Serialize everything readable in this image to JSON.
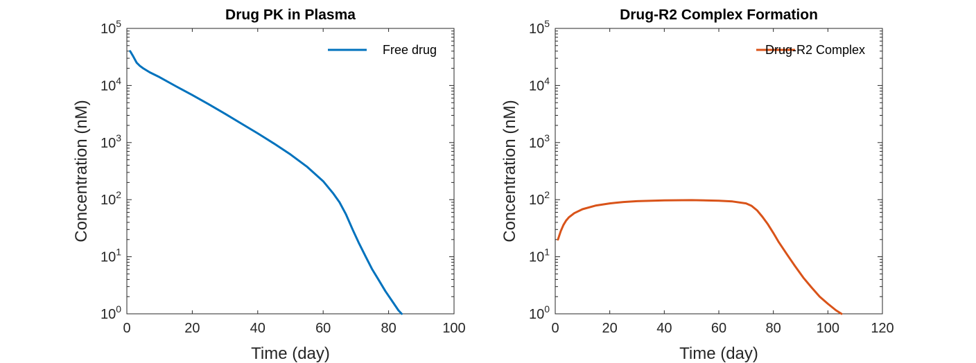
{
  "chart_data": [
    {
      "type": "line",
      "title": "Drug PK in Plasma",
      "xlabel": "Time (day)",
      "ylabel": "Concentration (nM)",
      "xlim": [
        0,
        100
      ],
      "ylim": [
        1,
        100000
      ],
      "yscale": "log",
      "xticks": [
        0,
        20,
        40,
        60,
        80,
        100
      ],
      "yticks": [
        {
          "base": "10",
          "exp": "0",
          "value": 1
        },
        {
          "base": "10",
          "exp": "1",
          "value": 10
        },
        {
          "base": "10",
          "exp": "2",
          "value": 100
        },
        {
          "base": "10",
          "exp": "3",
          "value": 1000
        },
        {
          "base": "10",
          "exp": "4",
          "value": 10000
        },
        {
          "base": "10",
          "exp": "5",
          "value": 100000
        }
      ],
      "legend_position": "top-right",
      "grid": false,
      "series": [
        {
          "name": "Free drug",
          "color": "#0072BD",
          "x": [
            1,
            2,
            3,
            4,
            5,
            7,
            10,
            15,
            20,
            25,
            30,
            35,
            40,
            45,
            50,
            55,
            60,
            63,
            65,
            67,
            69,
            71,
            73,
            75,
            77,
            79,
            81,
            83,
            84
          ],
          "y": [
            40000,
            32000,
            25000,
            22000,
            20000,
            17000,
            14000,
            9700,
            6800,
            4700,
            3200,
            2150,
            1450,
            960,
            620,
            380,
            210,
            130,
            90,
            55,
            30,
            17,
            10,
            6,
            3.9,
            2.5,
            1.7,
            1.15,
            1.0
          ]
        }
      ]
    },
    {
      "type": "line",
      "title": "Drug-R2 Complex Formation",
      "xlabel": "Time (day)",
      "ylabel": "Concentration (nM)",
      "xlim": [
        0,
        120
      ],
      "ylim": [
        1,
        100000
      ],
      "yscale": "log",
      "xticks": [
        0,
        20,
        40,
        60,
        80,
        100,
        120
      ],
      "yticks": [
        {
          "base": "10",
          "exp": "0",
          "value": 1
        },
        {
          "base": "10",
          "exp": "1",
          "value": 10
        },
        {
          "base": "10",
          "exp": "2",
          "value": 100
        },
        {
          "base": "10",
          "exp": "3",
          "value": 1000
        },
        {
          "base": "10",
          "exp": "4",
          "value": 10000
        },
        {
          "base": "10",
          "exp": "5",
          "value": 100000
        }
      ],
      "legend_position": "top-right",
      "grid": false,
      "series": [
        {
          "name": "Drug-R2 Complex",
          "color": "#D95319",
          "x": [
            1,
            2,
            3,
            4,
            5,
            7,
            10,
            15,
            20,
            25,
            30,
            40,
            50,
            60,
            65,
            70,
            72,
            74,
            76,
            78,
            80,
            82,
            85,
            88,
            91,
            94,
            97,
            100,
            103,
            105
          ],
          "y": [
            20,
            28,
            36,
            43,
            49,
            58,
            68,
            79,
            86,
            91,
            94,
            97,
            98,
            96,
            93,
            86,
            78,
            65,
            50,
            37,
            26,
            18,
            11,
            6.8,
            4.3,
            2.9,
            2.0,
            1.5,
            1.15,
            1.0
          ]
        }
      ]
    }
  ]
}
